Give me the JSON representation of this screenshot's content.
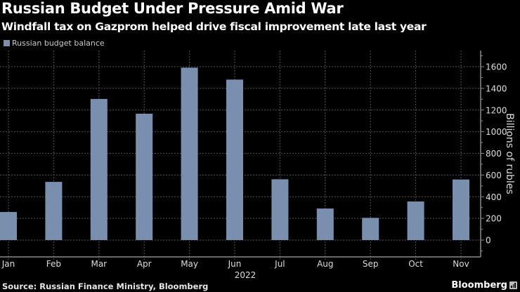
{
  "header": {
    "title": "Russian Budget Under Pressure Amid War",
    "subtitle": "Windfall tax on Gazprom helped drive fiscal improvement late last year"
  },
  "footer": {
    "source": "Source: Russian Finance Ministry, Bloomberg",
    "brand": "Bloomberg",
    "brand_icon": "bloomberg-chart-icon"
  },
  "colors": {
    "background": "#000000",
    "bar": "#7a8fae",
    "grid": "#555555",
    "axis": "#8a8a8a"
  },
  "chart_data": {
    "type": "bar",
    "title": "Russian Budget Under Pressure Amid War",
    "subtitle": "Windfall tax on Gazprom helped drive fiscal improvement late last year",
    "categories": [
      "Jan",
      "Feb",
      "Mar",
      "Apr",
      "May",
      "Jun",
      "Jul",
      "Aug",
      "Sep",
      "Oct",
      "Nov"
    ],
    "x_group_label": "2022",
    "series": [
      {
        "name": "Russian budget balance",
        "values": [
          259,
          537,
          1302,
          1166,
          1591,
          1481,
          561,
          291,
          205,
          356,
          559
        ]
      }
    ],
    "xlabel": "",
    "ylabel": "Billions of rubles",
    "ylim": [
      -150,
      1720
    ],
    "yticks": [
      0,
      200,
      400,
      600,
      800,
      1000,
      1200,
      1400,
      1600
    ],
    "y_axis_side": "right",
    "grid": true,
    "legend": "top-left"
  }
}
